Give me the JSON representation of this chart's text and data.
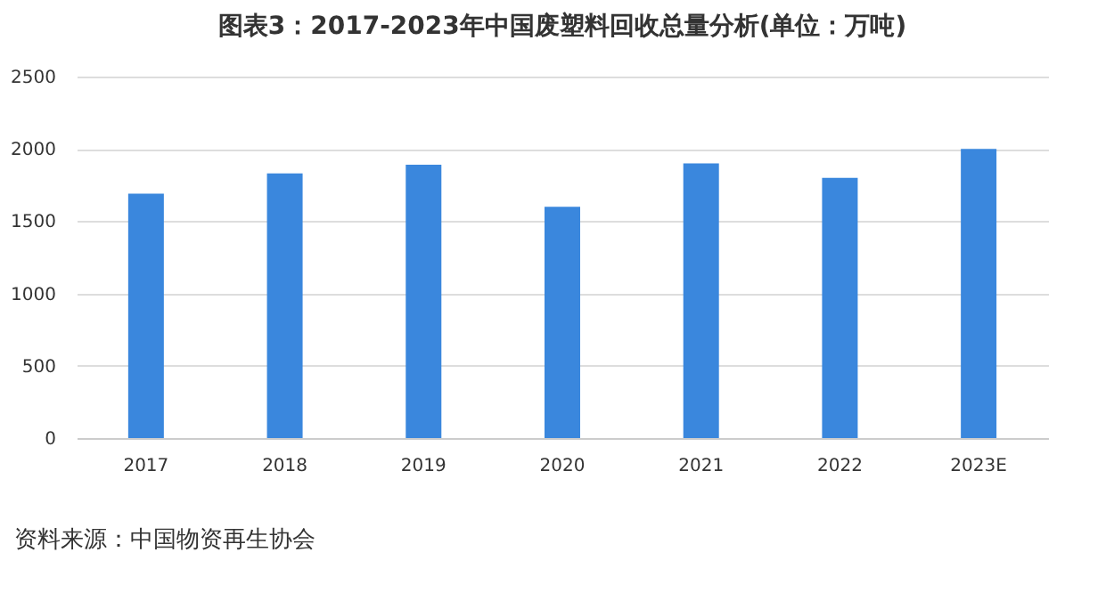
{
  "chart_data": {
    "type": "bar",
    "title": "图表3：2017-2023年中国废塑料回收总量分析(单位：万吨)",
    "categories": [
      "2017",
      "2018",
      "2019",
      "2020",
      "2021",
      "2022",
      "2023E"
    ],
    "values": [
      1690,
      1830,
      1890,
      1600,
      1900,
      1800,
      2000
    ],
    "color": "#3a87dd",
    "ylim": [
      0,
      2500
    ],
    "yticks": [
      0,
      500,
      1000,
      1500,
      2000,
      2500
    ],
    "grid": "y",
    "annotations": [
      "资料来源：中国物资再生协会"
    ]
  }
}
